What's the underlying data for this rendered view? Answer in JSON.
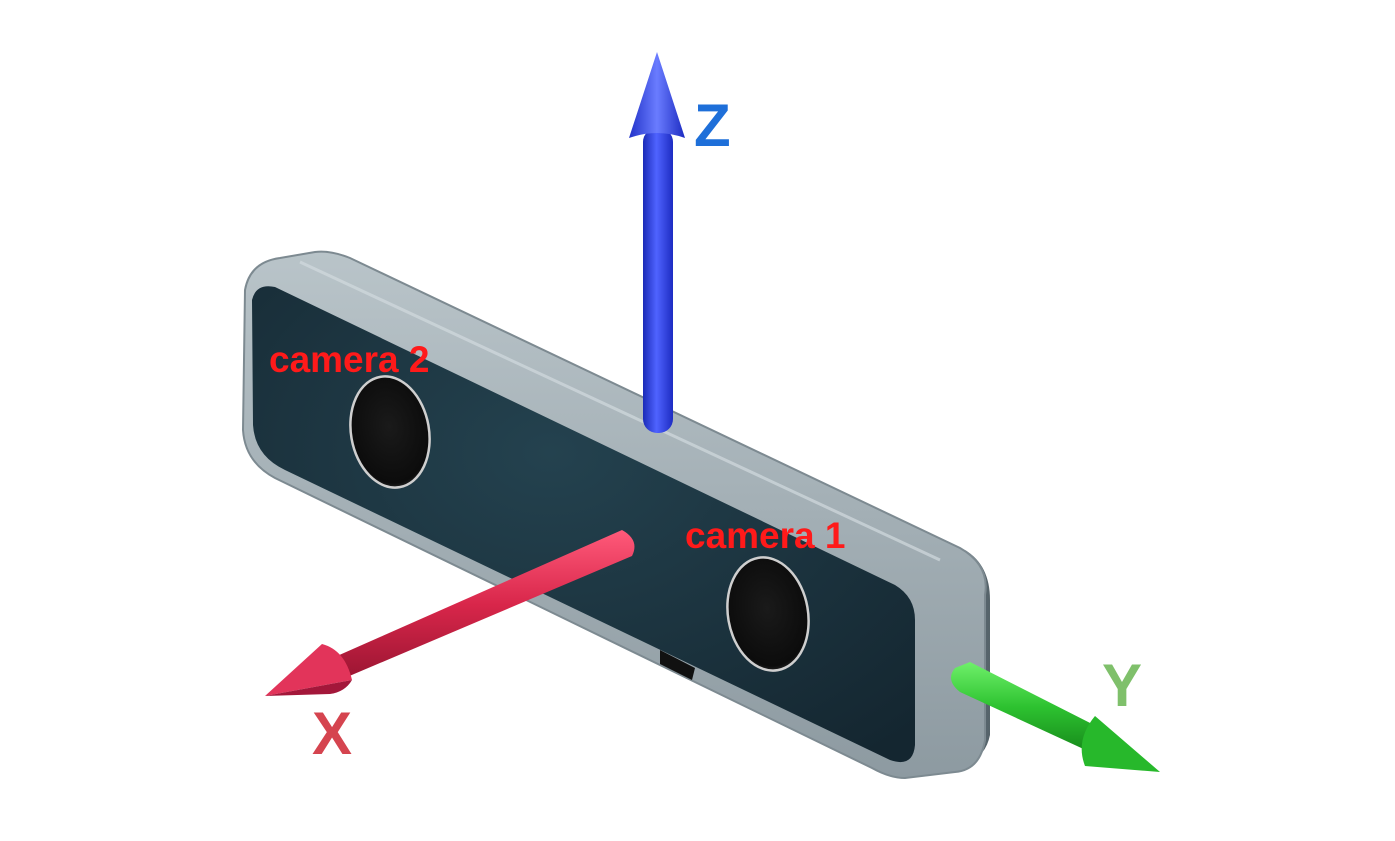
{
  "diagram": {
    "labels": {
      "z_axis": "Z",
      "x_axis": "X",
      "y_axis": "Y",
      "camera_1": "camera 1",
      "camera_2": "camera 2"
    },
    "colors": {
      "z_axis": "#1e6fd9",
      "x_axis": "#d5444f",
      "y_axis": "#7fc06b",
      "camera_label": "#ff1a1a",
      "body_shell": "#9aa7ad",
      "body_face": "#1d3440",
      "lens": "#111111",
      "z_arrow": "#2a3fe0",
      "x_arrow": "#d8264a",
      "y_arrow": "#2dc230"
    }
  }
}
